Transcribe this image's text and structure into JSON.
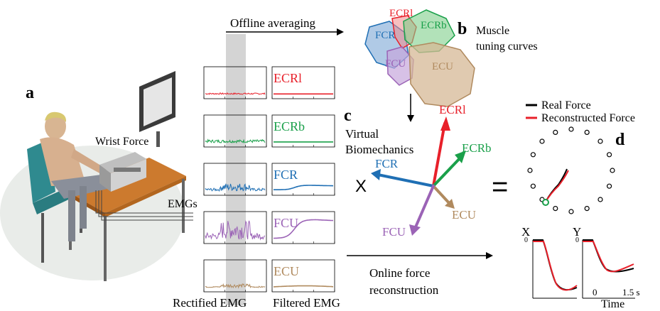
{
  "panel_labels": {
    "a": "a",
    "b": "b",
    "c": "c",
    "d": "d"
  },
  "texts": {
    "offline_averaging": "Offline averaging",
    "muscle_tuning_line1": "Muscle",
    "muscle_tuning_line2": "tuning curves",
    "wrist_force": "Wrist Force",
    "emgs": "EMGs",
    "virtual_line1": "Virtual",
    "virtual_line2": "Biomechanics",
    "times_sign": "X",
    "equals_sign": "=",
    "online_line1": "Online force",
    "online_line2": "reconstruction",
    "rectified_emg": "Rectified EMG",
    "filtered_emg": "Filtered EMG"
  },
  "muscles": [
    {
      "name": "ECRl",
      "color": "#e8202a"
    },
    {
      "name": "ECRb",
      "color": "#1aa04a"
    },
    {
      "name": "FCR",
      "color": "#1f6fb4"
    },
    {
      "name": "FCU",
      "color": "#9b63b6"
    },
    {
      "name": "ECU",
      "color": "#b08a5e"
    }
  ],
  "legend": {
    "real": "Real Force",
    "reconstructed": "Reconstructed Force",
    "real_color": "#000000",
    "reconstructed_color": "#e8202a"
  },
  "time_plots": {
    "x_label": "X",
    "y_label": "Y",
    "zero_tick": "0",
    "t0": "0",
    "t1": "1.5 s",
    "time_label": "Time"
  }
}
